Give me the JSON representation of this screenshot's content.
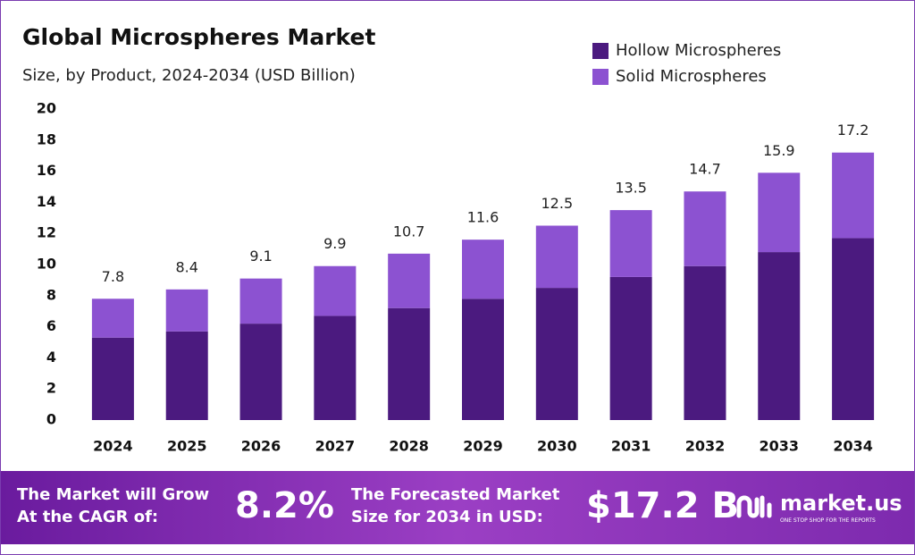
{
  "chart_data": {
    "type": "stacked_bar",
    "title": "Global Microspheres Market",
    "subtitle": "Size, by Product, 2024-2034 (USD Billion)",
    "categories": [
      "2024",
      "2025",
      "2026",
      "2027",
      "2028",
      "2029",
      "2030",
      "2031",
      "2032",
      "2033",
      "2034"
    ],
    "series": [
      {
        "name": "Hollow Microspheres",
        "color": "#4b1a7f",
        "values": [
          5.3,
          5.7,
          6.2,
          6.7,
          7.2,
          7.8,
          8.5,
          9.2,
          9.9,
          10.8,
          11.7
        ]
      },
      {
        "name": "Solid Microspheres",
        "color": "#8c52d1",
        "values": [
          2.5,
          2.7,
          2.9,
          3.2,
          3.5,
          3.8,
          4.0,
          4.3,
          4.8,
          5.1,
          5.5
        ]
      }
    ],
    "totals": [
      7.8,
      8.4,
      9.1,
      9.9,
      10.7,
      11.6,
      12.5,
      13.5,
      14.7,
      15.9,
      17.2
    ],
    "ylim": [
      0,
      20
    ],
    "yticks": [
      0,
      2,
      4,
      6,
      8,
      10,
      12,
      14,
      16,
      18,
      20
    ],
    "grid": false,
    "legend": "top-right"
  },
  "footer": {
    "cagr_text": "The Market will Grow At the CAGR of:",
    "cagr_value": "8.2%",
    "forecast_text": "The Forecasted Market Size for 2034 in USD:",
    "forecast_value": "$17.2 B",
    "brand": "market.us",
    "tagline": "ONE STOP SHOP FOR THE REPORTS"
  }
}
